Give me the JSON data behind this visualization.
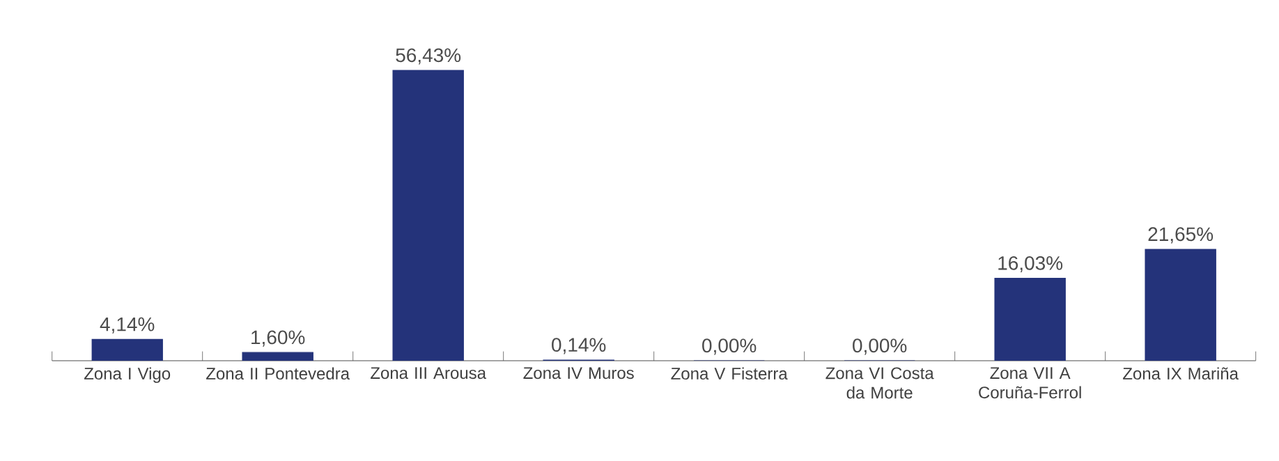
{
  "chart_data": {
    "type": "bar",
    "categories": [
      "Zona I Vigo",
      "Zona II Pontevedra",
      "Zona III Arousa",
      "Zona IV Muros",
      "Zona V Fisterra",
      "Zona VI Costa da Morte",
      "Zona VII A Coruña-Ferrol",
      "Zona IX Mariña"
    ],
    "values": [
      4.14,
      1.6,
      56.43,
      0.14,
      0.0,
      0.0,
      16.03,
      21.65
    ],
    "value_labels": [
      "4,14%",
      "1,60%",
      "56,43%",
      "0,14%",
      "0,00%",
      "0,00%",
      "16,03%",
      "21,65%"
    ],
    "color": "#24337a"
  }
}
